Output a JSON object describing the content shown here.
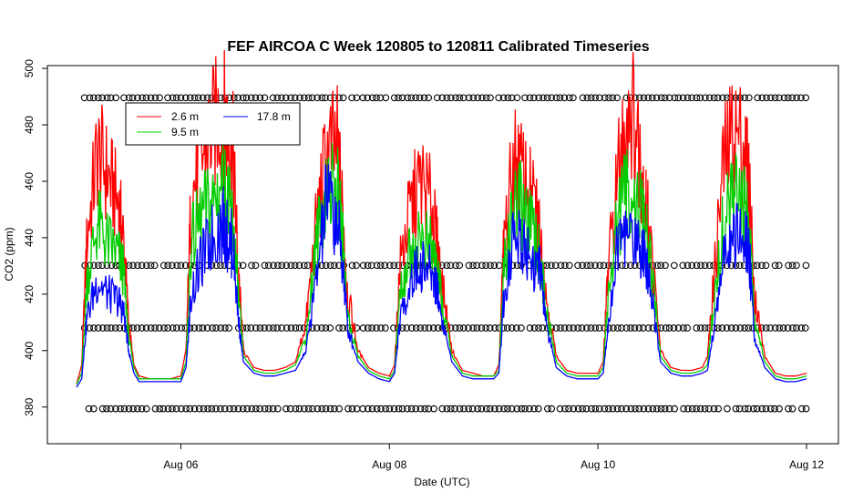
{
  "chart_data": {
    "type": "line",
    "title": "FEF AIRCOA C  Week 120805 to 120811  Calibrated Timeseries",
    "xlabel": "Date (UTC)",
    "ylabel": "CO2 (ppm)",
    "xlim": [
      5.0,
      12.0
    ],
    "ylim": [
      367,
      501
    ],
    "x_ticks": [
      {
        "value": 6,
        "label": "Aug 06"
      },
      {
        "value": 8,
        "label": "Aug 08"
      },
      {
        "value": 10,
        "label": "Aug 10"
      },
      {
        "value": 12,
        "label": "Aug 12"
      }
    ],
    "y_ticks": [
      {
        "value": 380,
        "label": "380"
      },
      {
        "value": 400,
        "label": "400"
      },
      {
        "value": 420,
        "label": "420"
      },
      {
        "value": 440,
        "label": "440"
      },
      {
        "value": 460,
        "label": "460"
      },
      {
        "value": 480,
        "label": "480"
      },
      {
        "value": 500,
        "label": "500"
      }
    ],
    "legend": {
      "position": "top-left",
      "entries": [
        {
          "name": "2.6 m",
          "color": "#ff0000"
        },
        {
          "name": "17.8 m",
          "color": "#0000ff"
        },
        {
          "name": "9.5 m",
          "color": "#00cc00"
        }
      ]
    },
    "series": [
      {
        "name": "2.6 m",
        "color": "#ff0000",
        "x": [
          5.0,
          5.05,
          5.1,
          5.2,
          5.3,
          5.4,
          5.45,
          5.5,
          5.55,
          5.6,
          5.7,
          5.8,
          5.9,
          6.0,
          6.05,
          6.1,
          6.2,
          6.3,
          6.4,
          6.45,
          6.5,
          6.55,
          6.6,
          6.7,
          6.8,
          6.9,
          7.0,
          7.1,
          7.2,
          7.3,
          7.4,
          7.5,
          7.55,
          7.6,
          7.7,
          7.8,
          7.9,
          8.0,
          8.05,
          8.1,
          8.2,
          8.3,
          8.4,
          8.45,
          8.5,
          8.6,
          8.7,
          8.8,
          8.9,
          9.0,
          9.05,
          9.1,
          9.2,
          9.3,
          9.4,
          9.45,
          9.5,
          9.6,
          9.7,
          9.8,
          9.9,
          10.0,
          10.05,
          10.1,
          10.2,
          10.3,
          10.4,
          10.45,
          10.5,
          10.6,
          10.7,
          10.8,
          10.9,
          11.0,
          11.05,
          11.1,
          11.2,
          11.3,
          11.4,
          11.45,
          11.5,
          11.6,
          11.7,
          11.8,
          11.9,
          12.0
        ],
        "y": [
          388,
          395,
          440,
          470,
          462,
          452,
          440,
          410,
          395,
          391,
          390,
          390,
          390,
          391,
          400,
          455,
          468,
          478,
          484,
          478,
          470,
          430,
          400,
          394,
          393,
          393,
          394,
          396,
          410,
          445,
          470,
          472,
          450,
          420,
          400,
          394,
          392,
          391,
          395,
          430,
          450,
          460,
          452,
          440,
          425,
          400,
          393,
          392,
          391,
          391,
          395,
          440,
          468,
          460,
          450,
          440,
          420,
          398,
          393,
          392,
          392,
          392,
          396,
          430,
          465,
          490,
          470,
          455,
          440,
          400,
          394,
          393,
          393,
          394,
          398,
          420,
          465,
          478,
          472,
          460,
          420,
          398,
          392,
          391,
          391,
          392
        ]
      },
      {
        "name": "9.5 m",
        "color": "#00cc00",
        "x": [
          5.0,
          5.05,
          5.1,
          5.2,
          5.3,
          5.4,
          5.45,
          5.5,
          5.55,
          5.6,
          5.7,
          5.8,
          5.9,
          6.0,
          6.05,
          6.1,
          6.2,
          6.3,
          6.4,
          6.45,
          6.5,
          6.55,
          6.6,
          6.7,
          6.8,
          6.9,
          7.0,
          7.1,
          7.2,
          7.3,
          7.4,
          7.5,
          7.55,
          7.6,
          7.7,
          7.8,
          7.9,
          8.0,
          8.05,
          8.1,
          8.2,
          8.3,
          8.4,
          8.45,
          8.5,
          8.6,
          8.7,
          8.8,
          8.9,
          9.0,
          9.05,
          9.1,
          9.2,
          9.3,
          9.4,
          9.45,
          9.5,
          9.6,
          9.7,
          9.8,
          9.9,
          10.0,
          10.05,
          10.1,
          10.2,
          10.3,
          10.4,
          10.45,
          10.5,
          10.6,
          10.7,
          10.8,
          10.9,
          11.0,
          11.05,
          11.1,
          11.2,
          11.3,
          11.4,
          11.45,
          11.5,
          11.6,
          11.7,
          11.8,
          11.9,
          12.0
        ],
        "y": [
          388,
          392,
          425,
          445,
          438,
          434,
          428,
          405,
          394,
          390,
          390,
          390,
          390,
          390,
          396,
          438,
          448,
          452,
          460,
          452,
          445,
          420,
          398,
          393,
          392,
          392,
          393,
          395,
          405,
          438,
          460,
          456,
          440,
          412,
          398,
          393,
          391,
          390,
          393,
          420,
          435,
          440,
          436,
          430,
          418,
          398,
          392,
          391,
          391,
          391,
          393,
          430,
          455,
          448,
          438,
          432,
          415,
          396,
          392,
          391,
          391,
          391,
          394,
          420,
          448,
          458,
          450,
          443,
          432,
          398,
          393,
          392,
          392,
          393,
          395,
          412,
          445,
          455,
          450,
          444,
          412,
          396,
          391,
          390,
          390,
          391
        ]
      },
      {
        "name": "17.8 m",
        "color": "#0000ff",
        "x": [
          5.0,
          5.05,
          5.1,
          5.2,
          5.3,
          5.4,
          5.45,
          5.5,
          5.55,
          5.6,
          5.7,
          5.8,
          5.9,
          6.0,
          6.05,
          6.1,
          6.2,
          6.3,
          6.4,
          6.45,
          6.5,
          6.55,
          6.6,
          6.7,
          6.8,
          6.9,
          7.0,
          7.1,
          7.2,
          7.3,
          7.4,
          7.5,
          7.55,
          7.6,
          7.7,
          7.8,
          7.9,
          8.0,
          8.05,
          8.1,
          8.2,
          8.3,
          8.4,
          8.45,
          8.5,
          8.6,
          8.7,
          8.8,
          8.9,
          9.0,
          9.05,
          9.1,
          9.2,
          9.3,
          9.4,
          9.45,
          9.5,
          9.6,
          9.7,
          9.8,
          9.9,
          10.0,
          10.05,
          10.1,
          10.2,
          10.3,
          10.4,
          10.45,
          10.5,
          10.6,
          10.7,
          10.8,
          10.9,
          11.0,
          11.05,
          11.1,
          11.2,
          11.3,
          11.4,
          11.45,
          11.5,
          11.6,
          11.7,
          11.8,
          11.9,
          12.0
        ],
        "y": [
          387,
          390,
          412,
          425,
          420,
          418,
          414,
          400,
          392,
          389,
          389,
          389,
          389,
          389,
          394,
          420,
          432,
          440,
          445,
          440,
          437,
          412,
          396,
          392,
          391,
          391,
          392,
          393,
          400,
          425,
          455,
          445,
          432,
          408,
          396,
          392,
          390,
          389,
          392,
          410,
          425,
          430,
          428,
          424,
          412,
          396,
          391,
          390,
          390,
          390,
          392,
          420,
          442,
          438,
          430,
          428,
          410,
          394,
          391,
          390,
          390,
          390,
          392,
          410,
          440,
          442,
          437,
          435,
          425,
          396,
          392,
          391,
          391,
          392,
          393,
          405,
          432,
          440,
          438,
          435,
          405,
          394,
          390,
          389,
          389,
          390
        ]
      },
      {
        "name": "calibration",
        "color": "#000000",
        "marker": "open-circle",
        "levels": [
          489.6,
          430.2,
          408.0,
          379.4
        ],
        "segments": [
          [
            5.08,
            7.7
          ],
          [
            7.75,
            12.0
          ]
        ],
        "spacing": 0.042
      }
    ]
  }
}
